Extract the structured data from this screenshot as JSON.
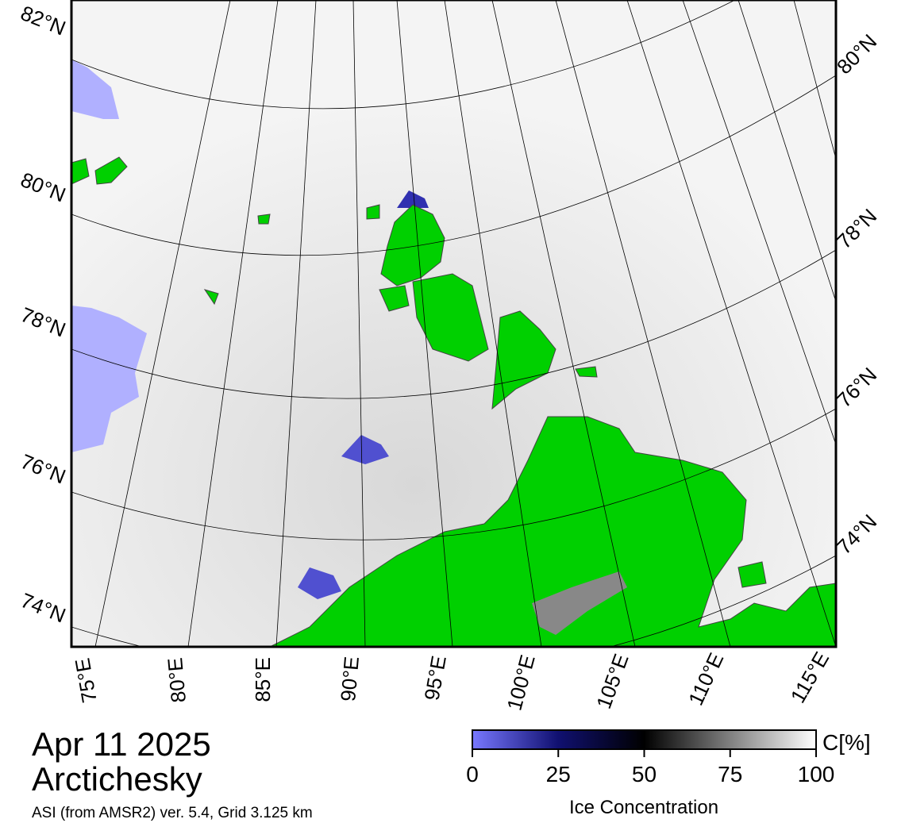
{
  "lat_labels_left": [
    "82°N",
    "80°N",
    "78°N",
    "76°N",
    "74°N"
  ],
  "lat_labels_right": [
    "80°N",
    "78°N",
    "76°N",
    "74°N"
  ],
  "lon_labels": [
    "75°E",
    "80°E",
    "85°E",
    "90°E",
    "95°E",
    "100°E",
    "105°E",
    "110°E",
    "115°E"
  ],
  "date": "Apr 11 2025",
  "region": "Arctichesky",
  "source": "ASI (from AMSR2) ver. 5.4,  Grid 3.125 km",
  "colorbar": {
    "ticks": [
      0,
      25,
      50,
      75,
      100
    ],
    "lim": [
      0,
      100
    ],
    "label": "Ice Concentration",
    "unit": "C[%]"
  }
}
